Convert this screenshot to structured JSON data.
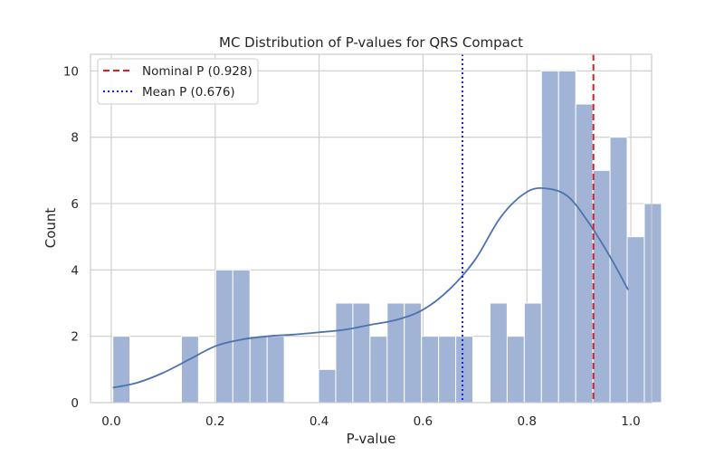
{
  "chart_data": {
    "type": "bar",
    "title": "MC Distribution of P-values for QRS Compact",
    "xlabel": "P-value",
    "ylabel": "Count",
    "xlim": [
      -0.04,
      1.04
    ],
    "ylim": [
      0,
      10.5
    ],
    "grid": true,
    "legend_position": "top-left",
    "x_ticks": [
      0.0,
      0.2,
      0.4,
      0.6,
      0.8,
      1.0
    ],
    "x_tick_labels": [
      "0.0",
      "0.2",
      "0.4",
      "0.6",
      "0.8",
      "1.0"
    ],
    "y_ticks": [
      0,
      2,
      4,
      6,
      8,
      10
    ],
    "y_tick_labels": [
      "0",
      "2",
      "4",
      "6",
      "8",
      "10"
    ],
    "bins": {
      "edges_start": 0.003,
      "bin_width": 0.033,
      "counts": [
        2,
        0,
        0,
        0,
        2,
        0,
        4,
        4,
        2,
        2,
        0,
        0,
        1,
        3,
        3,
        2,
        3,
        3,
        2,
        2,
        2,
        0,
        3,
        2,
        3,
        10,
        10,
        9,
        7,
        8,
        5,
        6
      ],
      "color": "#a1b4d6"
    },
    "kde": {
      "color": "#4c72b0",
      "x": [
        0.003,
        0.05,
        0.1,
        0.15,
        0.2,
        0.25,
        0.3,
        0.35,
        0.4,
        0.45,
        0.5,
        0.55,
        0.6,
        0.65,
        0.7,
        0.75,
        0.8,
        0.84,
        0.88,
        0.92,
        0.96,
        0.995
      ],
      "y": [
        0.45,
        0.6,
        0.9,
        1.3,
        1.7,
        1.9,
        2.0,
        2.05,
        2.12,
        2.2,
        2.35,
        2.5,
        2.8,
        3.4,
        4.3,
        5.6,
        6.35,
        6.45,
        6.2,
        5.4,
        4.4,
        3.4
      ]
    },
    "vlines": [
      {
        "label": "Nominal P (0.928)",
        "x": 0.928,
        "color": "#e41a1c",
        "style": "dashed"
      },
      {
        "label": "Mean P (0.676)",
        "x": 0.676,
        "color": "#1a1aff",
        "style": "dotted"
      }
    ]
  }
}
